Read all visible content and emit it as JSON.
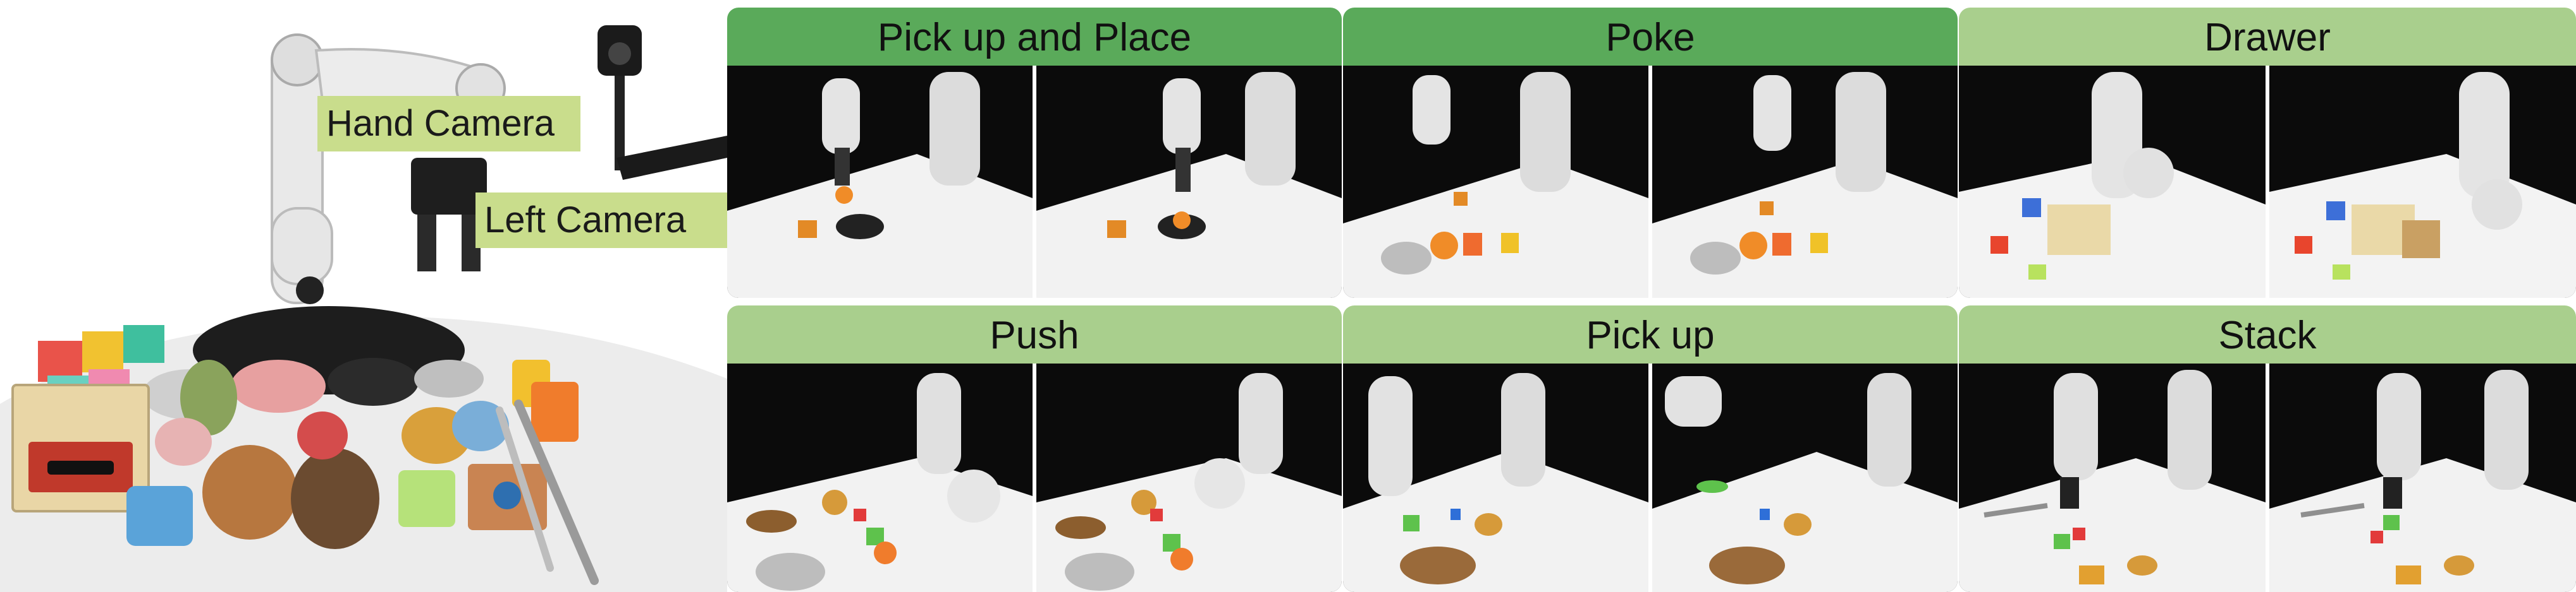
{
  "setup": {
    "hand_camera_label": "Hand Camera",
    "left_camera_label": "Left Camera"
  },
  "tasks": [
    {
      "label": "Pick up and Place",
      "color": "#5aaa5a"
    },
    {
      "label": "Poke",
      "color": "#5aaa5a"
    },
    {
      "label": "Drawer",
      "color": "#a9cf8d"
    },
    {
      "label": "Push",
      "color": "#a9cf8d"
    },
    {
      "label": "Pick up",
      "color": "#a9cf8d"
    },
    {
      "label": "Stack",
      "color": "#a9cf8d"
    }
  ],
  "colors": {
    "strong_header": "#5aaa5a",
    "light_header": "#a9cf8d",
    "camera_label_bg": "#c9dd8c"
  }
}
